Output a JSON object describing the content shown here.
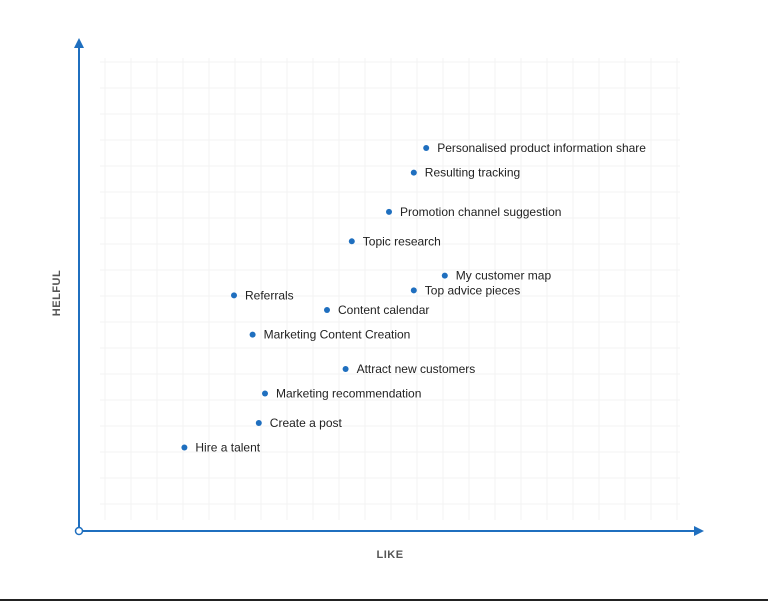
{
  "chart_data": {
    "type": "scatter",
    "title": "",
    "xlabel": "LIKE",
    "ylabel": "HELFUL",
    "xlim": [
      0,
      100
    ],
    "ylim": [
      0,
      100
    ],
    "grid": true,
    "marker_color": "#1f6fbf",
    "axis_color": "#1f6fbf",
    "points": [
      {
        "label": "Personalised product information share",
        "x": 56,
        "y": 78
      },
      {
        "label": "Resulting tracking",
        "x": 54,
        "y": 73
      },
      {
        "label": "Promotion channel suggestion",
        "x": 50,
        "y": 65
      },
      {
        "label": "Topic research",
        "x": 44,
        "y": 59
      },
      {
        "label": "My customer map",
        "x": 59,
        "y": 52
      },
      {
        "label": "Top advice pieces",
        "x": 54,
        "y": 49
      },
      {
        "label": "Referrals",
        "x": 25,
        "y": 48
      },
      {
        "label": "Content calendar",
        "x": 40,
        "y": 45
      },
      {
        "label": "Marketing Content Creation",
        "x": 28,
        "y": 40
      },
      {
        "label": "Attract new customers",
        "x": 43,
        "y": 33
      },
      {
        "label": "Marketing recommendation",
        "x": 30,
        "y": 28
      },
      {
        "label": "Create a post",
        "x": 29,
        "y": 22
      },
      {
        "label": "Hire a talent",
        "x": 17,
        "y": 17
      }
    ]
  }
}
